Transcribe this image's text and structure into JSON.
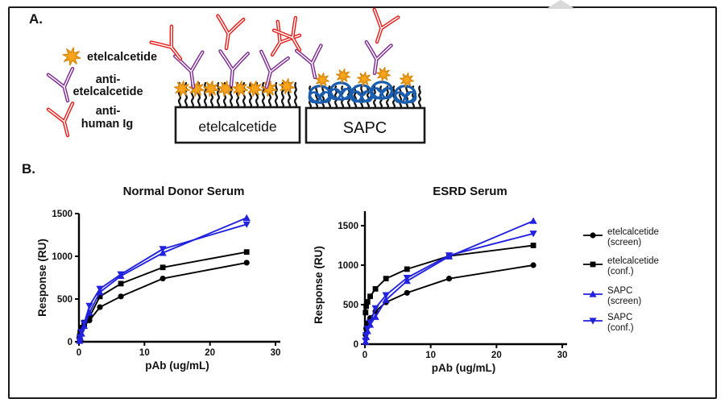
{
  "figure": {
    "panel_a": {
      "label": "A.",
      "key_items": [
        {
          "icon": "star-icon",
          "lines": [
            "etelcalcetide"
          ]
        },
        {
          "icon": "antibody-purple-icon",
          "lines": [
            "anti-",
            "etelcalcetide"
          ]
        },
        {
          "icon": "antibody-red-icon",
          "lines": [
            "anti-",
            "human Ig"
          ]
        }
      ],
      "surface_labels": [
        "etelcalcetide",
        "SAPC"
      ],
      "colors": {
        "star_fill": "#F9A51B",
        "star_stroke": "#D9890D",
        "anti_etelcalcetide": "#7D2C91",
        "anti_human_ig": "#E3211F",
        "sapc_blob": "#1A5CAD",
        "surface_chain": "#141414",
        "box_border": "#1a1a1a"
      }
    },
    "panel_b": {
      "label": "B.",
      "legend": [
        {
          "marker": "circle",
          "color": "#000000",
          "lines": [
            "etelcalcetide",
            "(screen)"
          ]
        },
        {
          "marker": "square",
          "color": "#000000",
          "lines": [
            "etelcalcetide",
            "(conf.)"
          ]
        },
        {
          "marker": "triangle-up",
          "color": "#2121DE",
          "lines": [
            "SAPC",
            "(screen)"
          ]
        },
        {
          "marker": "triangle-down",
          "color": "#2121DE",
          "lines": [
            "SAPC",
            "(conf.)"
          ]
        }
      ]
    }
  },
  "chart_data": [
    {
      "type": "line",
      "title": "Normal Donor Serum",
      "xlabel": "pAb (ug/mL)",
      "ylabel": "Response (RU)",
      "xlim": [
        0,
        30
      ],
      "ylim": [
        0,
        1500
      ],
      "xticks": [
        0,
        10,
        20,
        30
      ],
      "yticks": [
        0,
        500,
        1000,
        1500
      ],
      "axis_top_value": 1500,
      "x": [
        0.1,
        0.2,
        0.4,
        0.8,
        1.6,
        3.2,
        6.4,
        12.8,
        25.6
      ],
      "series": [
        {
          "name": "etelcalcetide (screen)",
          "marker": "circle",
          "color": "#000000",
          "values": [
            50,
            90,
            135,
            185,
            250,
            405,
            530,
            740,
            925
          ]
        },
        {
          "name": "etelcalcetide (conf.)",
          "marker": "square",
          "color": "#000000",
          "values": [
            60,
            110,
            165,
            225,
            290,
            530,
            680,
            870,
            1050
          ]
        },
        {
          "name": "SAPC (screen)",
          "marker": "triangle-up",
          "color": "#2121DE",
          "values": [
            10,
            45,
            95,
            185,
            340,
            580,
            770,
            1040,
            1450
          ]
        },
        {
          "name": "SAPC (conf.)",
          "marker": "triangle-down",
          "color": "#2121DE",
          "values": [
            15,
            55,
            115,
            215,
            420,
            620,
            790,
            1085,
            1375
          ]
        }
      ]
    },
    {
      "type": "line",
      "title": "ESRD Serum",
      "xlabel": "pAb (ug/mL)",
      "ylabel": "Response (RU)",
      "xlim": [
        0,
        30
      ],
      "ylim": [
        0,
        1500
      ],
      "xticks": [
        0,
        10,
        20,
        30
      ],
      "yticks": [
        0,
        500,
        1000,
        1500
      ],
      "axis_top_value": 1685,
      "x": [
        0.1,
        0.2,
        0.4,
        0.8,
        1.6,
        3.2,
        6.4,
        12.8,
        25.6
      ],
      "series": [
        {
          "name": "etelcalcetide (screen)",
          "marker": "circle",
          "color": "#000000",
          "values": [
            120,
            200,
            265,
            330,
            415,
            530,
            650,
            830,
            1000
          ]
        },
        {
          "name": "etelcalcetide (conf.)",
          "marker": "square",
          "color": "#000000",
          "values": [
            400,
            480,
            535,
            605,
            700,
            830,
            950,
            1115,
            1250
          ]
        },
        {
          "name": "SAPC (screen)",
          "marker": "triangle-up",
          "color": "#2121DE",
          "values": [
            30,
            90,
            165,
            245,
            345,
            560,
            800,
            1110,
            1560
          ]
        },
        {
          "name": "SAPC (conf.)",
          "marker": "triangle-down",
          "color": "#2121DE",
          "values": [
            45,
            115,
            195,
            275,
            455,
            620,
            840,
            1125,
            1400
          ]
        }
      ]
    }
  ]
}
